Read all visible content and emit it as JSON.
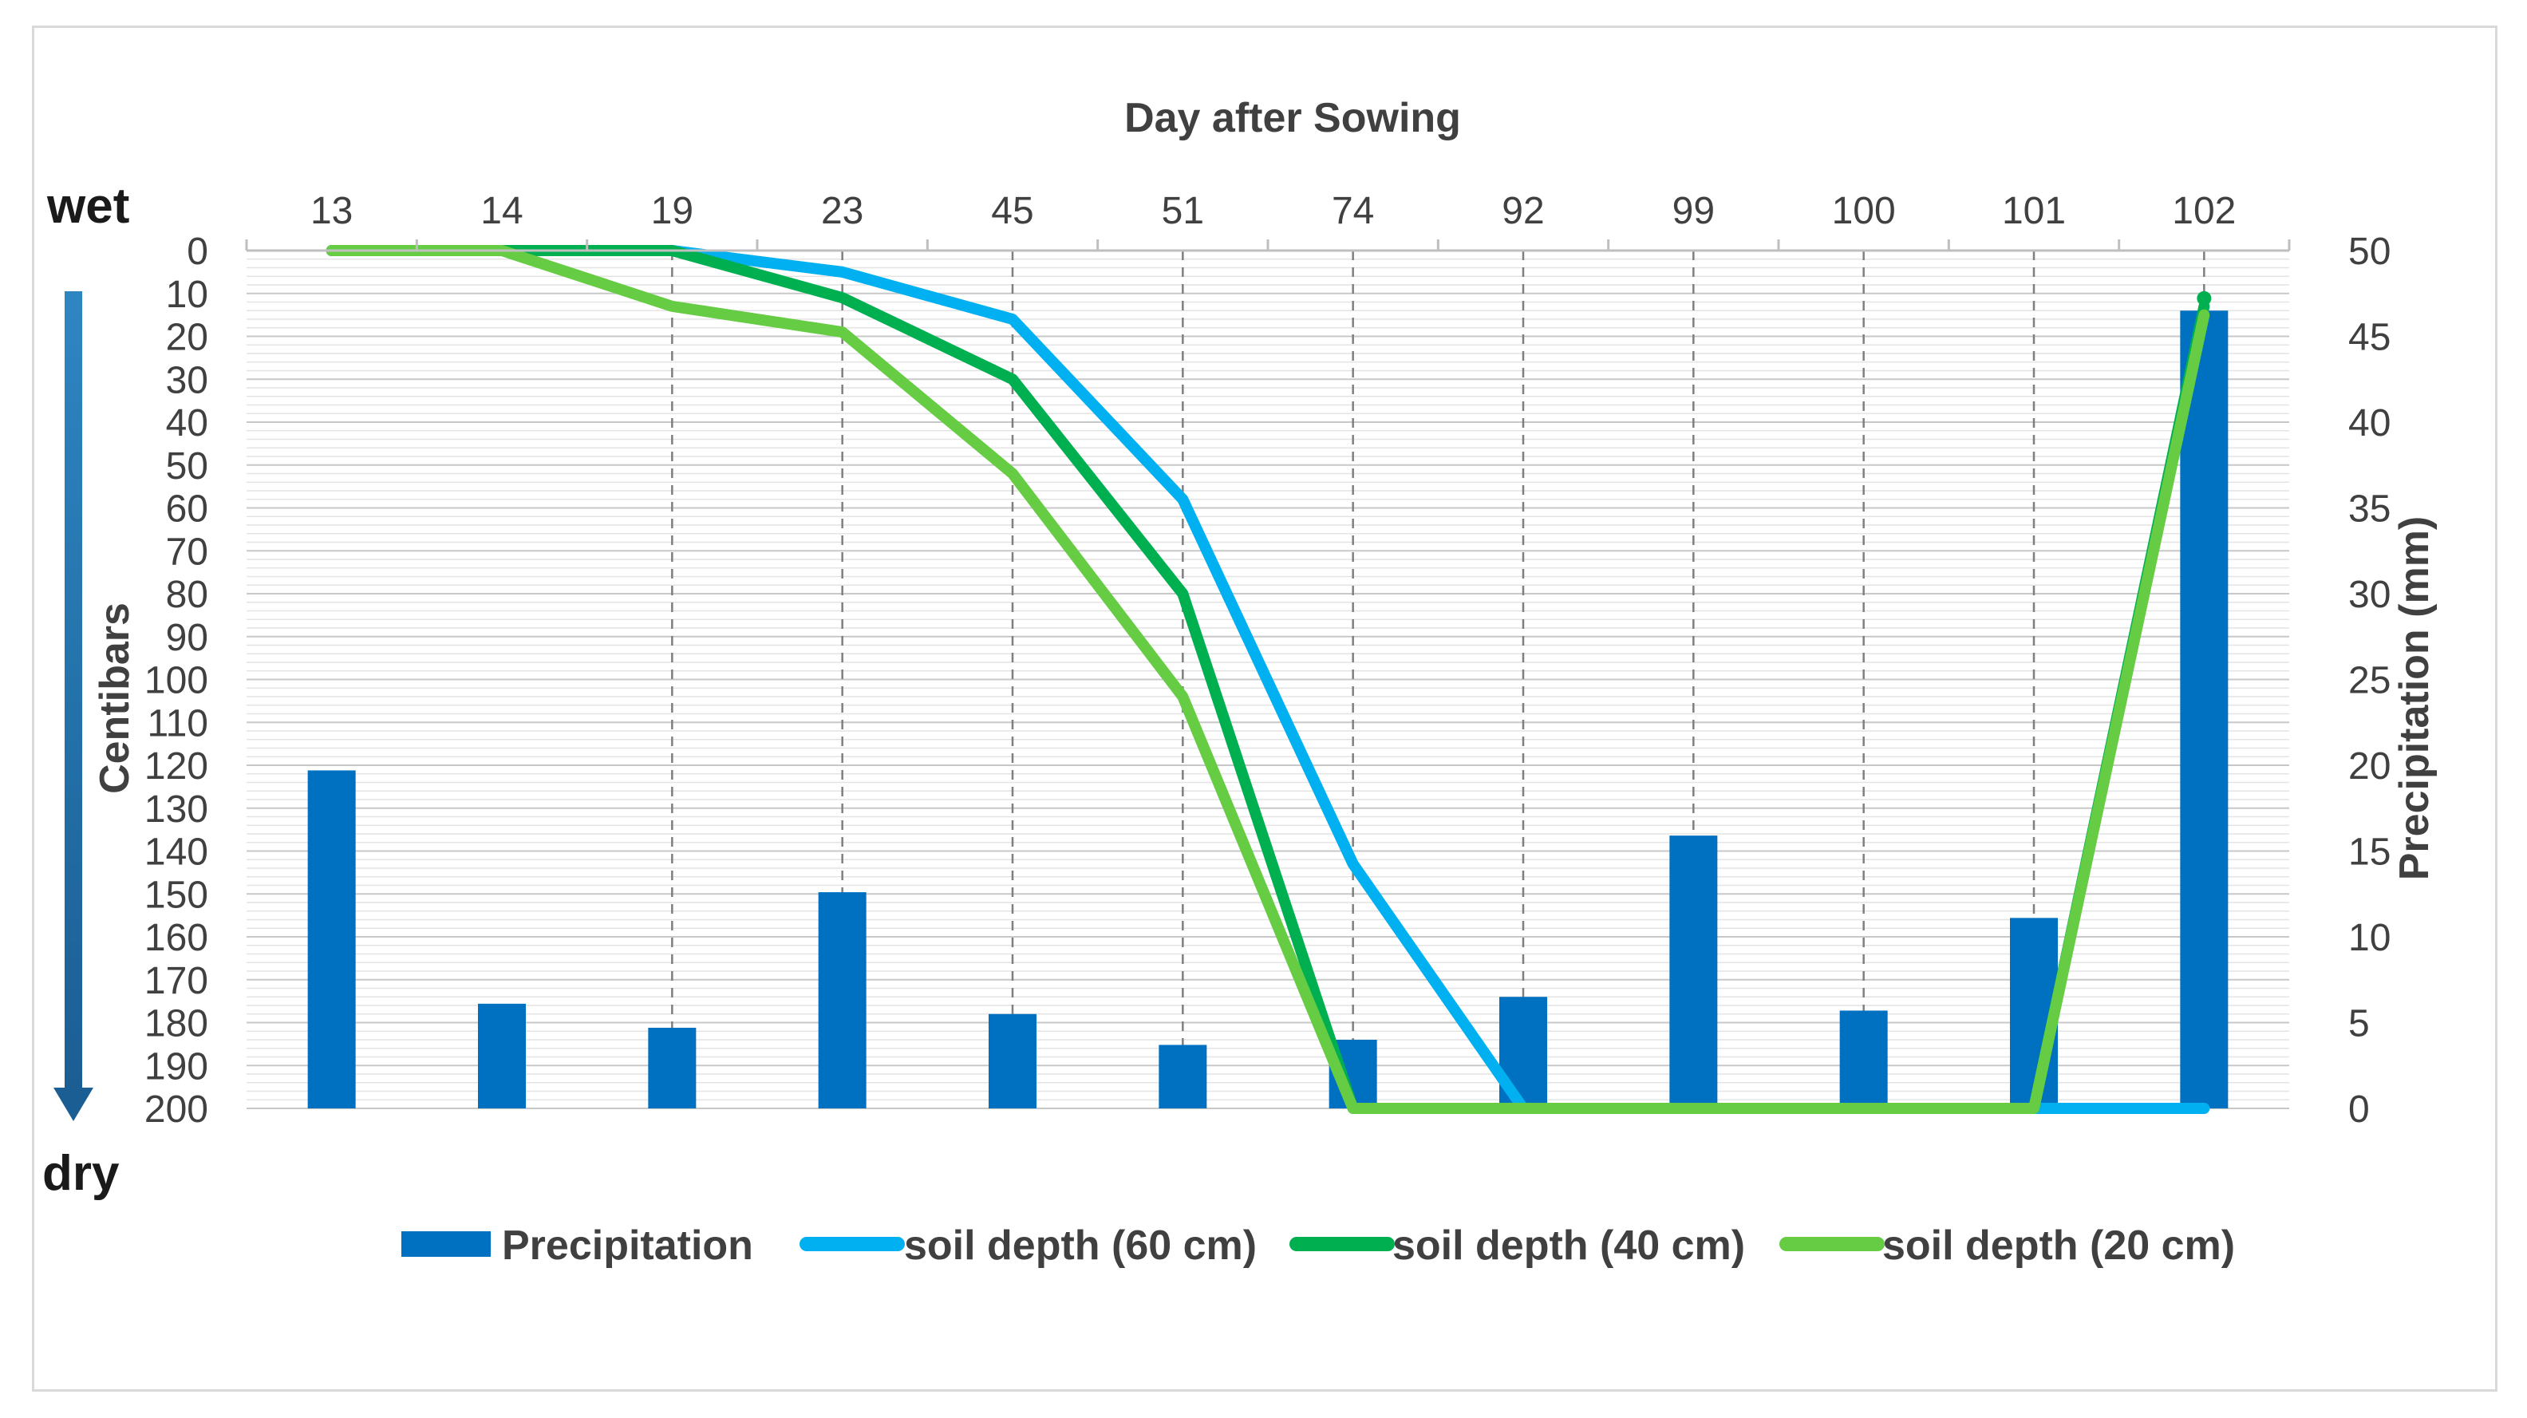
{
  "chart_data": {
    "type": "bar+line",
    "title": "",
    "xlabel": "Day after Sowing",
    "ylabel_left": "Centibars",
    "ylabel_right": "Precipitation (mm)",
    "wet_label": "wet",
    "dry_label": "dry",
    "categories": [
      "13",
      "14",
      "19",
      "23",
      "45",
      "51",
      "74",
      "92",
      "99",
      "100",
      "101",
      "102"
    ],
    "left_axis": {
      "range": [
        0,
        200
      ],
      "inverted": true,
      "ticks": [
        0,
        10,
        20,
        30,
        40,
        50,
        60,
        70,
        80,
        90,
        100,
        110,
        120,
        130,
        140,
        150,
        160,
        170,
        180,
        190,
        200
      ]
    },
    "right_axis": {
      "range": [
        0,
        50
      ],
      "ticks": [
        0,
        5,
        10,
        15,
        20,
        25,
        30,
        35,
        40,
        45,
        50
      ]
    },
    "colors": {
      "precipitation": "#0070c0",
      "soil_60": "#00b0f0",
      "soil_40": "#00b050",
      "soil_20": "#66cc44",
      "arrow": "#1f77b4",
      "grid": "#d9d9d9",
      "dashed_grid": "#7f7f7f"
    },
    "series": [
      {
        "name": "Precipitation",
        "kind": "bar",
        "axis": "right",
        "values": [
          19.7,
          6.1,
          4.7,
          12.6,
          5.5,
          3.7,
          4.0,
          6.5,
          15.9,
          5.7,
          11.1,
          46.5
        ]
      },
      {
        "name": "soil depth (60 cm)",
        "kind": "line",
        "axis": "left",
        "values": [
          0,
          0,
          0,
          5,
          16,
          58,
          143,
          200,
          200,
          200,
          200,
          200
        ]
      },
      {
        "name": "soil depth (40 cm)",
        "kind": "line",
        "axis": "left",
        "values": [
          0,
          0,
          0,
          11,
          30,
          80,
          200,
          200,
          200,
          200,
          200,
          13
        ]
      },
      {
        "name": "soil depth (20 cm)",
        "kind": "line",
        "axis": "left",
        "values": [
          0,
          0,
          13,
          19,
          52,
          104,
          200,
          200,
          200,
          200,
          200,
          15
        ]
      }
    ],
    "legend": [
      "Precipitation",
      "soil depth (60 cm)",
      "soil depth (40 cm)",
      "soil depth (20 cm)"
    ]
  }
}
